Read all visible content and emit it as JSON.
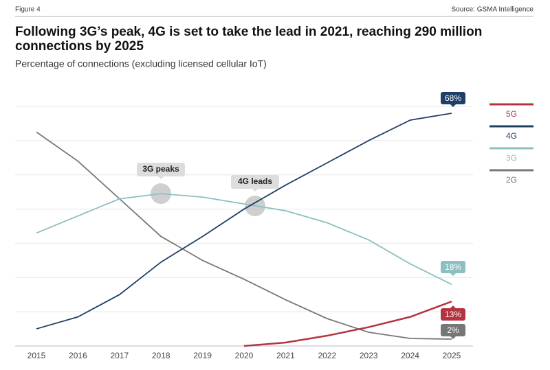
{
  "figure_label": "Figure 4",
  "source": "Source: GSMA Intelligence",
  "chart_data": {
    "type": "line",
    "title": "Following 3G’s peak, 4G is set to take the lead in 2021, reaching 290 million connections by 2025",
    "subtitle": "Percentage of connections (excluding licensed cellular IoT)",
    "categories": [
      "2015",
      "2016",
      "2017",
      "2018",
      "2019",
      "2020",
      "2021",
      "2022",
      "2023",
      "2024",
      "2025"
    ],
    "series": [
      {
        "name": "5G",
        "color": "#b5333f",
        "values": [
          null,
          null,
          null,
          null,
          null,
          0,
          1,
          3,
          5.5,
          8.5,
          13
        ],
        "value_labels": [
          null,
          null,
          null,
          null,
          null,
          null,
          null,
          null,
          null,
          null,
          "13%"
        ]
      },
      {
        "name": "4G",
        "color": "#1f3f66",
        "values": [
          5,
          8.5,
          15,
          24.5,
          32,
          40,
          47,
          53.5,
          60,
          66,
          68
        ],
        "value_labels": [
          null,
          null,
          null,
          null,
          null,
          null,
          null,
          null,
          null,
          null,
          "68%"
        ]
      },
      {
        "name": "3G",
        "color": "#8cbfbf",
        "values": [
          33,
          38,
          43,
          44.5,
          43.5,
          41.5,
          39.5,
          36,
          31,
          24,
          18
        ],
        "value_labels": [
          null,
          null,
          null,
          null,
          null,
          null,
          null,
          null,
          null,
          null,
          "18%"
        ]
      },
      {
        "name": "2G",
        "color": "#777777",
        "values": [
          62.5,
          54,
          43,
          32,
          25,
          19.5,
          13.5,
          8,
          4,
          2.2,
          2
        ],
        "value_labels": [
          null,
          null,
          null,
          null,
          null,
          null,
          null,
          null,
          null,
          null,
          "2%"
        ]
      }
    ],
    "annotations": [
      "3G peaks",
      "4G leads"
    ],
    "ylim": [
      0,
      70
    ],
    "yticks": [
      0,
      10,
      20,
      30,
      40,
      50,
      60,
      70
    ],
    "grid": true,
    "legend": "right"
  }
}
